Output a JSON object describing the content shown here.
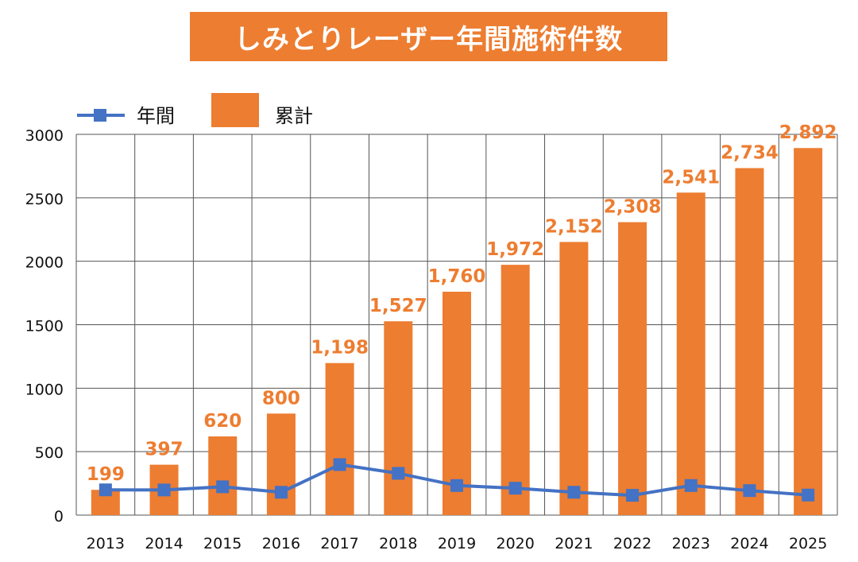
{
  "chart_data": {
    "type": "bar+line",
    "title": "しみとりレーザー年間施術件数",
    "categories": [
      "2013",
      "2014",
      "2015",
      "2016",
      "2017",
      "2018",
      "2019",
      "2020",
      "2021",
      "2022",
      "2023",
      "2024",
      "2025"
    ],
    "series": [
      {
        "name": "年間",
        "type": "line",
        "color": "#4472C4",
        "marker": "square",
        "values": [
          199,
          198,
          223,
          180,
          398,
          329,
          233,
          212,
          180,
          156,
          233,
          193,
          158
        ]
      },
      {
        "name": "累計",
        "type": "bar",
        "color": "#ED7D31",
        "values": [
          199,
          397,
          620,
          800,
          1198,
          1527,
          1760,
          1972,
          2152,
          2308,
          2541,
          2734,
          2892
        ],
        "labels": [
          "199",
          "397",
          "620",
          "800",
          "1,198",
          "1,527",
          "1,760",
          "1,972",
          "2,152",
          "2,308",
          "2,541",
          "2,734",
          "2,892"
        ]
      }
    ],
    "yticks": [
      "0",
      "500",
      "1000",
      "1500",
      "2000",
      "2500",
      "3000"
    ],
    "ylim": [
      0,
      3000
    ],
    "grid": true,
    "legend": "top-left"
  }
}
